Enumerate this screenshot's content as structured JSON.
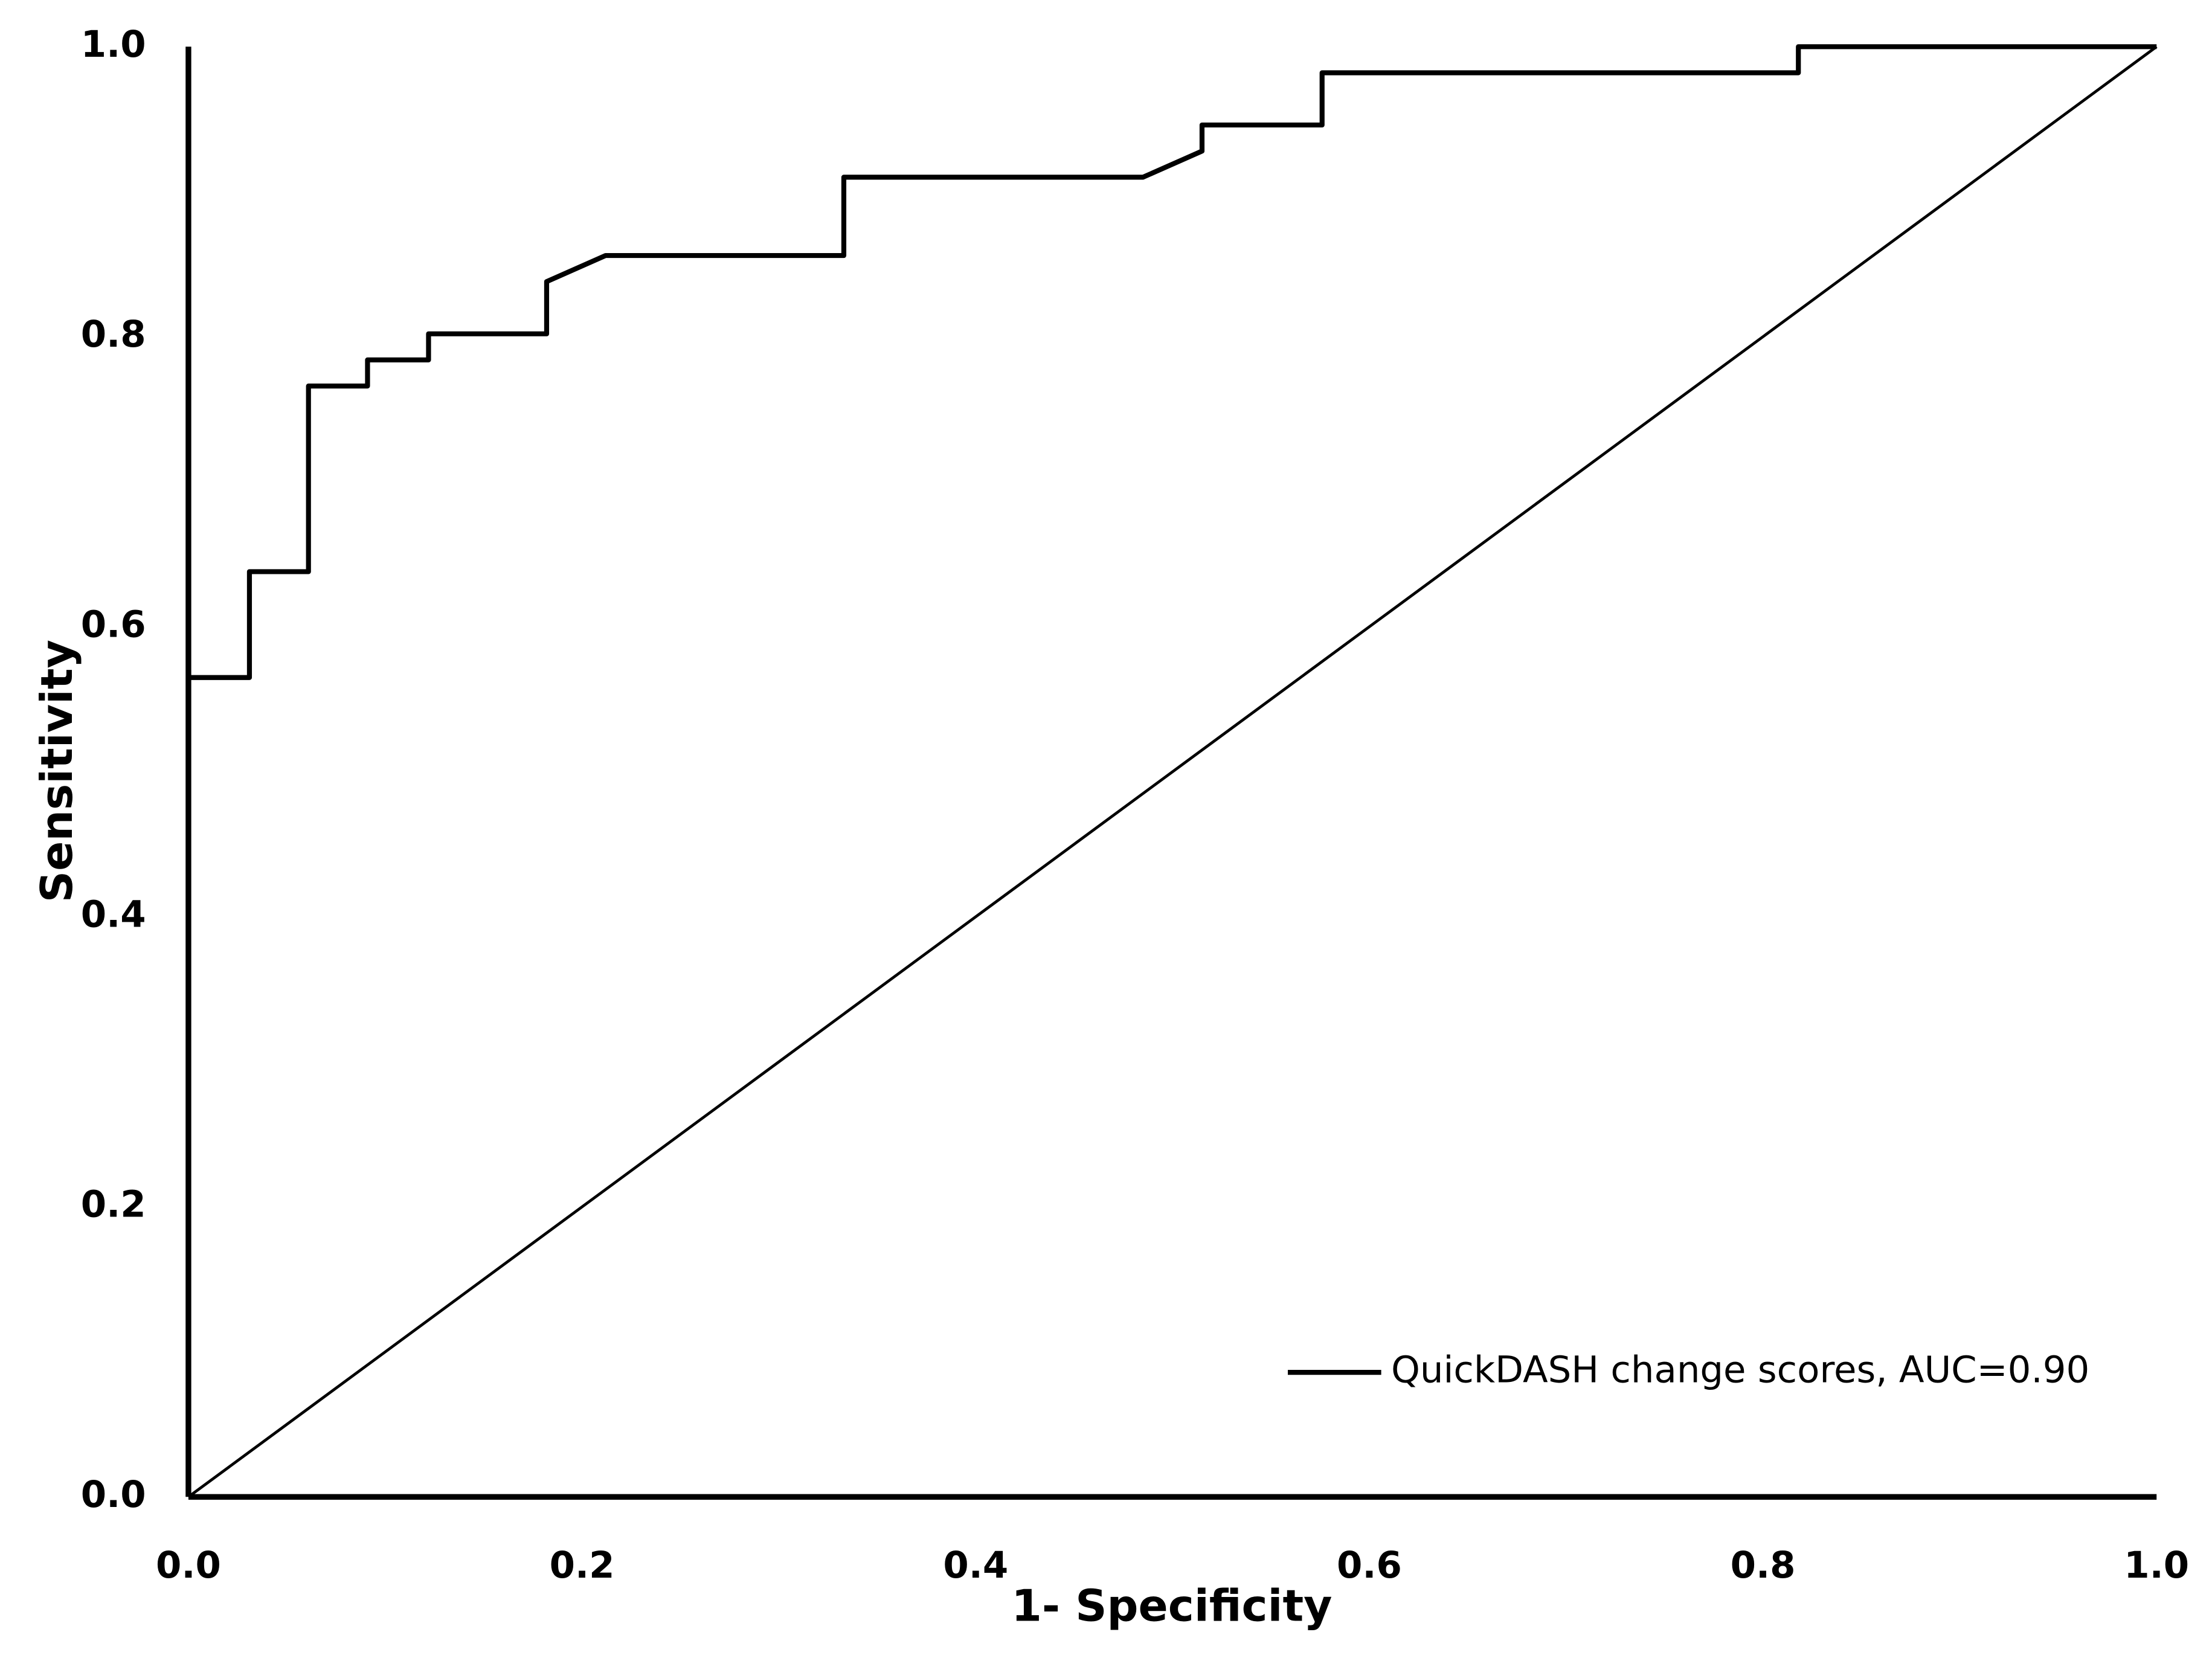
{
  "chart_data": {
    "type": "line",
    "xlabel": "1- Specificity",
    "ylabel": "Sensitivity",
    "xlim": [
      0,
      1
    ],
    "ylim": [
      0,
      1
    ],
    "xticks": [
      {
        "value": 0,
        "label": "0.0"
      },
      0.2,
      0.4,
      0.6,
      0.8,
      {
        "value": 1,
        "label": "1.0"
      }
    ],
    "yticks": [
      {
        "value": 0,
        "label": "0.0"
      },
      0.2,
      0.4,
      0.6,
      0.8,
      {
        "value": 1,
        "label": "1.0"
      }
    ],
    "grid": false,
    "legend": "lower right",
    "series": [
      {
        "name": "QuickDASH change scores, AUC=0.90",
        "color": "#000000",
        "x": [
          0,
          0.031,
          0.031,
          0.061,
          0.061,
          0.091,
          0.091,
          0.122,
          0.122,
          0.182,
          0.182,
          0.212,
          0.333,
          0.333,
          0.485,
          0.515,
          0.515,
          0.576,
          0.576,
          0.818,
          0.818,
          1
        ],
        "values": [
          0.565,
          0.565,
          0.638,
          0.638,
          0.766,
          0.766,
          0.784,
          0.784,
          0.802,
          0.802,
          0.838,
          0.856,
          0.856,
          0.91,
          0.91,
          0.928,
          0.946,
          0.946,
          0.982,
          0.982,
          1,
          1
        ]
      },
      {
        "color": "#000000",
        "x": [
          0,
          1
        ],
        "values": [
          0,
          1
        ]
      }
    ]
  }
}
